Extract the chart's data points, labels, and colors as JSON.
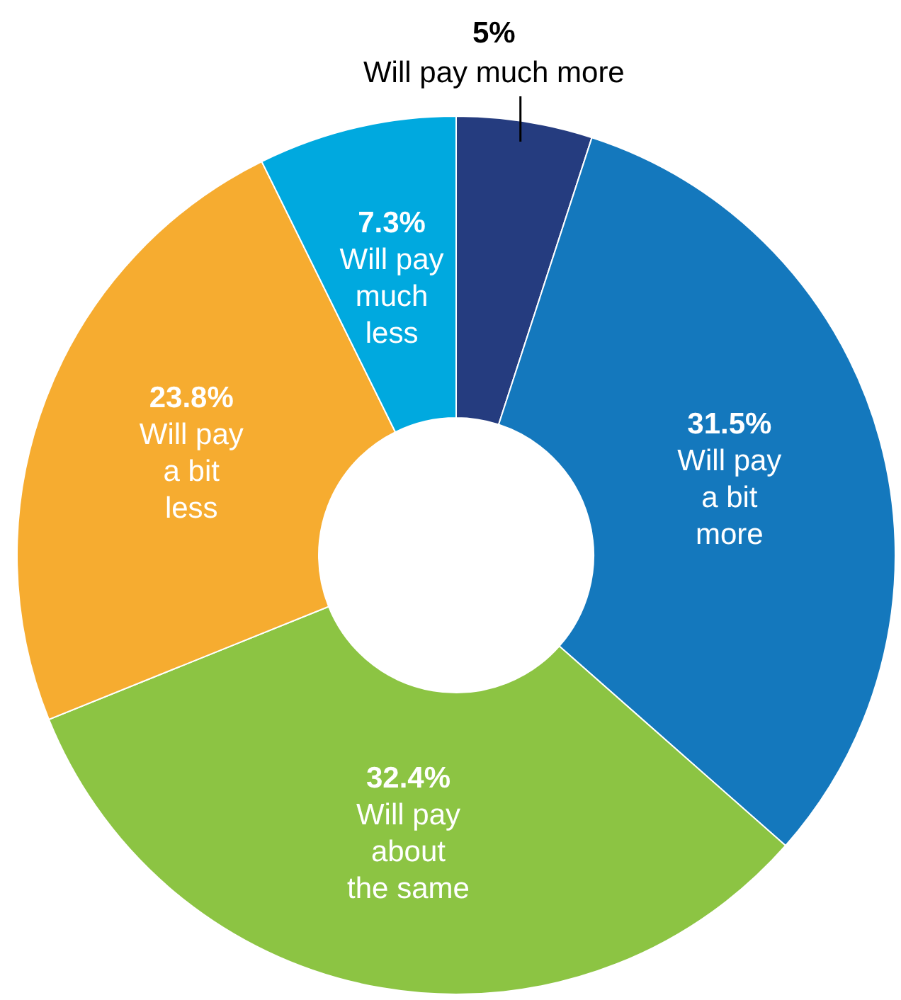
{
  "chart_data": {
    "type": "donut",
    "categories": [
      "Will pay much more",
      "Will pay a bit more",
      "Will pay about the same",
      "Will pay a bit less",
      "Will pay much less"
    ],
    "values": [
      5,
      31.5,
      32.4,
      23.8,
      7.3
    ],
    "value_labels": [
      "5%",
      "31.5%",
      "32.4%",
      "23.8%",
      "7.3%"
    ],
    "colors": [
      "#253c7f",
      "#1478bd",
      "#8cc443",
      "#f6ac30",
      "#00a9df"
    ]
  }
}
